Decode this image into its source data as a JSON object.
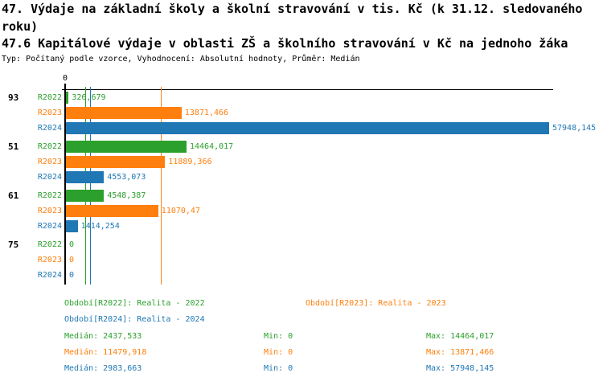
{
  "header": {
    "title_line1": "47. Výdaje na základní školy a školní stravování v tis. Kč (k 31.12. sledovaného",
    "title_line2": "roku)",
    "subtitle": "47.6 Kapitálové výdaje v oblasti ZŠ a školního stravování v Kč na jednoho žáka",
    "meta": "Typ: Počítaný podle vzorce, Vyhodnocení: Absolutní hodnoty, Průměr: Medián"
  },
  "colors": {
    "r2022": "#2ca02c",
    "r2023": "#ff7f0e",
    "r2024": "#1f77b4",
    "axis": "#000000"
  },
  "chart_data": {
    "type": "bar",
    "orientation": "horizontal",
    "value_axis": {
      "zero_label": "0",
      "min": 0,
      "max": 57948.145
    },
    "groups": [
      "93",
      "51",
      "61",
      "75"
    ],
    "series": [
      {
        "name": "R2022",
        "color_key": "r2022",
        "values": [
          326.679,
          14464.017,
          4548.387,
          0
        ],
        "value_labels": [
          "326,679",
          "14464,017",
          "4548,387",
          "0"
        ],
        "median": 2437.533
      },
      {
        "name": "R2023",
        "color_key": "r2023",
        "values": [
          13871.466,
          11889.366,
          11070.47,
          0
        ],
        "value_labels": [
          "13871,466",
          "11889,366",
          "11070,47",
          "0"
        ],
        "median": 11479.918
      },
      {
        "name": "R2024",
        "color_key": "r2024",
        "values": [
          57948.145,
          4553.073,
          1414.254,
          0
        ],
        "value_labels": [
          "57948,145",
          "4553,073",
          "1414,254",
          "0"
        ],
        "median": 2983.663
      }
    ]
  },
  "legend": {
    "r2022": "Období[R2022]: Realita - 2022",
    "r2023": "Období[R2023]: Realita - 2023",
    "r2024": "Období[R2024]: Realita - 2024"
  },
  "stats": [
    {
      "color_key": "r2022",
      "median": "Medián: 2437,533",
      "min": "Min: 0",
      "max": "Max: 14464,017"
    },
    {
      "color_key": "r2023",
      "median": "Medián: 11479,918",
      "min": "Min: 0",
      "max": "Max: 13871,466"
    },
    {
      "color_key": "r2024",
      "median": "Medián: 2983,663",
      "min": "Min: 0",
      "max": "Max: 57948,145"
    }
  ]
}
